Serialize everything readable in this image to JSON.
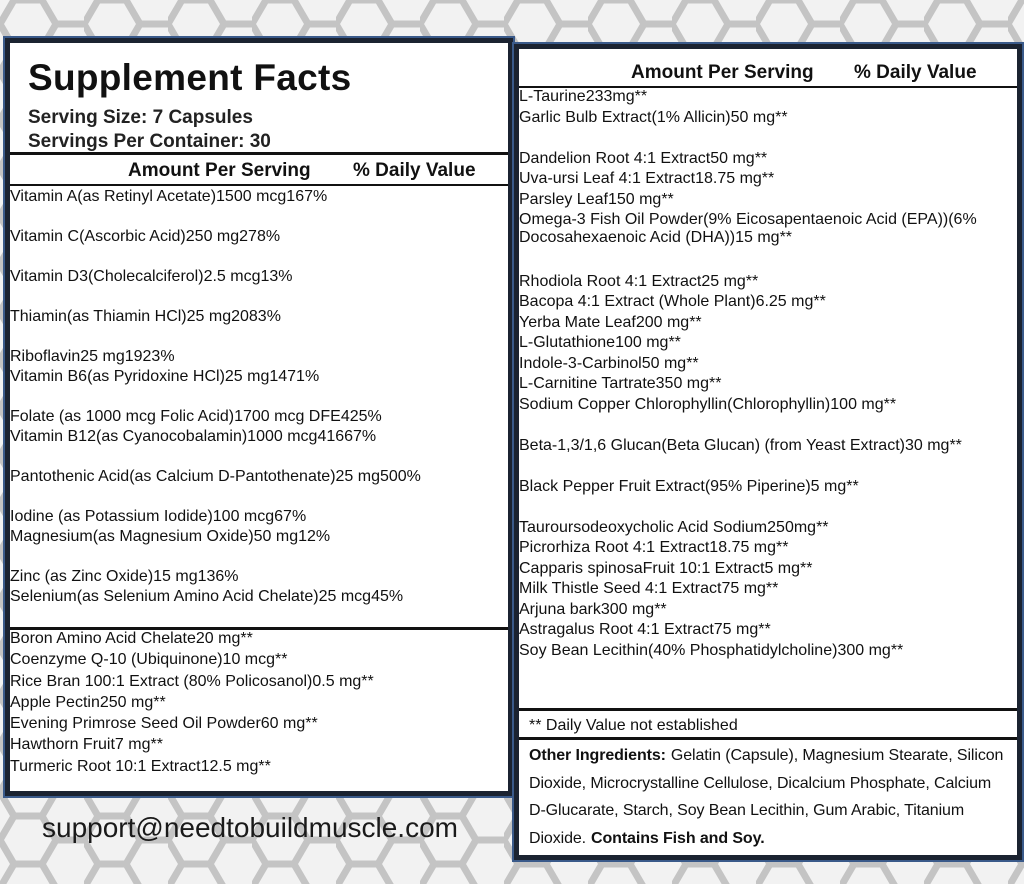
{
  "left": {
    "title": "Supplement Facts",
    "serving_size": "Serving Size: 7 Capsules",
    "servings_per_container": "Servings Per Container: 30",
    "header": [
      "Amount Per Serving",
      "% Daily Value"
    ],
    "groups": [
      [
        {
          "name": "Vitamin A",
          "sub": [
            "(as Retinyl Acetate)"
          ],
          "amount": "1500 mcg",
          "dv": "167%"
        },
        {
          "name": "Vitamin C",
          "sub": [
            "(Ascorbic Acid)"
          ],
          "amount": "250 mg",
          "dv": "278%"
        },
        {
          "name": "Vitamin D3",
          "sub": [
            "(Cholecalciferol)"
          ],
          "amount": "2.5 mcg",
          "dv": "13%"
        },
        {
          "name": "Thiamin",
          "sub": [
            "(as Thiamin HCl)"
          ],
          "amount": "25 mg",
          "dv": "2083%"
        },
        {
          "name": "Riboflavin",
          "sub": [],
          "amount": "25 mg",
          "dv": "1923%"
        },
        {
          "name": "Vitamin B6",
          "sub": [
            "(as Pyridoxine HCl)"
          ],
          "amount": "25 mg",
          "dv": "1471%"
        },
        {
          "name": "Folate (as 1000 mcg Folic Acid)",
          "sub": [],
          "amount": "1700 mcg DFE",
          "dv": "425%"
        },
        {
          "name": "Vitamin B12",
          "sub": [
            "(as Cyanocobalamin)"
          ],
          "amount": "1000 mcg",
          "dv": "41667%"
        },
        {
          "name": "Pantothenic Acid",
          "sub": [
            "(as Calcium D-Pantothenate)"
          ],
          "amount": "25 mg",
          "dv": "500%"
        },
        {
          "name": "Iodine (as Potassium Iodide)",
          "sub": [],
          "amount": "100 mcg",
          "dv": "67%"
        },
        {
          "name": "Magnesium",
          "sub": [
            "(as Magnesium Oxide)"
          ],
          "amount": "50 mg",
          "dv": "12%"
        },
        {
          "name": "Zinc (as Zinc Oxide)",
          "sub": [],
          "amount": "15 mg",
          "dv": "136%"
        },
        {
          "name": "Selenium",
          "sub": [
            "(as Selenium Amino Acid Chelate)"
          ],
          "amount": "25 mcg",
          "dv": "45%"
        }
      ],
      [
        {
          "name": "Boron Amino Acid Chelate",
          "sub": [],
          "amount": "20 mg",
          "dv": "**"
        },
        {
          "name": "Coenzyme Q-10 (Ubiquinone)",
          "sub": [],
          "amount": "10 mcg",
          "dv": "**"
        },
        {
          "name": "Rice Bran 100:1 Extract (80% Policosanol)",
          "sub": [],
          "amount": "0.5 mg",
          "dv": "**"
        },
        {
          "name": "Apple Pectin",
          "sub": [],
          "amount": "250 mg",
          "dv": "**"
        },
        {
          "name": "Evening Primrose Seed Oil Powder",
          "sub": [],
          "amount": "60 mg",
          "dv": "**"
        },
        {
          "name": "Hawthorn Fruit",
          "sub": [],
          "amount": "7 mg",
          "dv": "**"
        },
        {
          "name": "Turmeric Root 10:1 Extract",
          "sub": [],
          "amount": "12.5 mg",
          "dv": "**"
        }
      ]
    ],
    "email": "support@needtobuildmuscle.com"
  },
  "right": {
    "header": [
      "Amount Per Serving",
      "% Daily Value"
    ],
    "groups": [
      [
        {
          "name": "L-Taurine",
          "sub": [],
          "amount": "233mg",
          "dv": "**"
        },
        {
          "name": "Garlic Bulb Extract",
          "sub": [
            "(1% Allicin)"
          ],
          "amount": "50 mg",
          "dv": "**"
        },
        {
          "name": "Dandelion Root 4:1 Extract",
          "sub": [],
          "amount": "50 mg",
          "dv": "**"
        },
        {
          "name": "Uva-ursi Leaf 4:1 Extract",
          "sub": [],
          "amount": "18.75 mg",
          "dv": "**"
        },
        {
          "name": "Parsley Leaf",
          "sub": [],
          "amount": "150 mg",
          "dv": "**"
        },
        {
          "name": "Omega-3 Fish Oil Powder",
          "sub": [
            "(9% Eicosapentaenoic Acid (EPA))",
            "(6% Docosahexaenoic Acid (DHA))"
          ],
          "amount": "15 mg",
          "dv": "**"
        },
        {
          "name": "Rhodiola Root 4:1 Extract",
          "sub": [],
          "amount": "25 mg",
          "dv": "**"
        },
        {
          "name": "Bacopa 4:1 Extract (Whole Plant)",
          "sub": [],
          "amount": "6.25 mg",
          "dv": "**"
        },
        {
          "name": "Yerba Mate Leaf",
          "sub": [],
          "amount": "200 mg",
          "dv": "**"
        },
        {
          "name": "L-Glutathione",
          "sub": [],
          "amount": "100 mg",
          "dv": "**"
        },
        {
          "name": "Indole-3-Carbinol",
          "sub": [],
          "amount": "50 mg",
          "dv": "**"
        },
        {
          "name": "L-Carnitine Tartrate",
          "sub": [],
          "amount": "350 mg",
          "dv": "**"
        },
        {
          "name": "Sodium Copper Chlorophyllin",
          "sub": [
            "(Chlorophyllin)"
          ],
          "amount": "100 mg",
          "dv": "**"
        },
        {
          "name": "Beta-1,3/1,6 Glucan",
          "sub": [
            "(Beta Glucan) (from Yeast Extract)"
          ],
          "amount": "30 mg",
          "dv": "**"
        },
        {
          "name": "Black Pepper Fruit Extract",
          "sub": [
            "(95% Piperine)"
          ],
          "amount": "5 mg",
          "dv": "**"
        },
        {
          "name": "Tauroursodeoxycholic Acid Sodium",
          "sub": [],
          "amount": "250mg",
          "dv": "**"
        },
        {
          "name": "Picrorhiza Root 4:1 Extract",
          "sub": [],
          "amount": "18.75 mg",
          "dv": "**"
        },
        {
          "name_italic": "Capparis spinosa",
          "name": "Fruit 10:1 Extract",
          "sub": [],
          "amount": "5 mg",
          "dv": "**"
        },
        {
          "name": "Milk Thistle Seed 4:1 Extract",
          "sub": [],
          "amount": "75 mg",
          "dv": "**"
        },
        {
          "name": "Arjuna bark",
          "sub": [],
          "amount": "300 mg",
          "dv": "**"
        },
        {
          "name": "Astragalus Root 4:1 Extract",
          "sub": [],
          "amount": "75 mg",
          "dv": "**"
        },
        {
          "name": "Soy Bean Lecithin",
          "sub": [
            "(40% Phosphatidylcholine)"
          ],
          "amount": "300 mg",
          "dv": "**"
        }
      ]
    ],
    "footnote": "** Daily Value not established",
    "other_ingredients": {
      "label": "Other Ingredients:",
      "text": "Gelatin (Capsule), Magnesium Stearate, Silicon Dioxide, Microcrystalline Cellulose, Dicalcium Phosphate, Calcium D-Glucarate, Starch, Soy Bean Lecithin, Gum Arabic, Titanium Dioxide.",
      "allergens": "Contains Fish and Soy."
    }
  }
}
